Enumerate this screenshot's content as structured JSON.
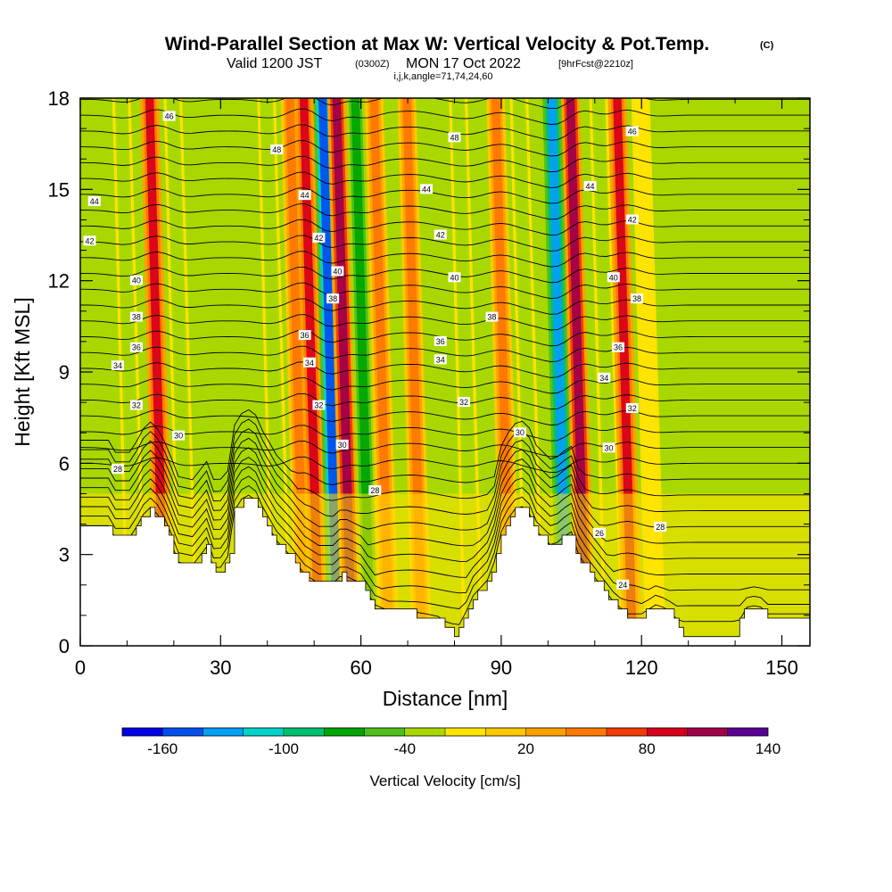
{
  "chart_data": {
    "type": "heatmap",
    "title": "Wind-Parallel Section at Max W: Vertical Velocity & Pot.Temp.",
    "title_mark": "(C)",
    "subtitle": {
      "valid_prefix": "Valid 1200 JST",
      "utc": "(0300Z)",
      "date": "MON 17 Oct 2022",
      "forecast": "[9hrFcst@2210z]"
    },
    "subtitle2": "i,j,k,angle=71,74,24,60",
    "xlabel": "Distance [nm]",
    "ylabel": "Height [Kft MSL]",
    "xlim": [
      0,
      156
    ],
    "ylim": [
      0,
      18
    ],
    "xticks": [
      0,
      30,
      60,
      90,
      120,
      150
    ],
    "yticks": [
      0,
      3,
      6,
      9,
      12,
      15,
      18
    ],
    "colorbar": {
      "label": "Vertical Velocity [cm/s]",
      "tick_labels": [
        -160,
        -100,
        -40,
        20,
        80,
        140
      ],
      "colors": [
        "#0000e6",
        "#0050f0",
        "#00a0f5",
        "#00d2c8",
        "#00c070",
        "#00a600",
        "#4ec01a",
        "#a8d800",
        "#ffe400",
        "#ffc800",
        "#ffa000",
        "#ff7800",
        "#f03c00",
        "#d8001a",
        "#a0004a",
        "#5a0096"
      ]
    },
    "velocity_bands_nm": [
      {
        "x": 12,
        "w": -40
      },
      {
        "x": 18,
        "w": 80
      },
      {
        "x": 23,
        "w": -40
      },
      {
        "x": 43,
        "w": -40
      },
      {
        "x": 48,
        "w": 40
      },
      {
        "x": 51,
        "w": 80
      },
      {
        "x": 55,
        "w": -160
      },
      {
        "x": 58,
        "w": 100
      },
      {
        "x": 62,
        "w": -80
      },
      {
        "x": 66,
        "w": 40
      },
      {
        "x": 73,
        "w": 40
      },
      {
        "x": 84,
        "w": -40
      },
      {
        "x": 92,
        "w": 40
      },
      {
        "x": 97,
        "w": -40
      },
      {
        "x": 104,
        "w": -130
      },
      {
        "x": 108,
        "w": 100
      },
      {
        "x": 114,
        "w": -40
      },
      {
        "x": 118,
        "w": 80
      },
      {
        "x": 123,
        "w": -20
      }
    ],
    "theta_contours_k": [
      24,
      26,
      28,
      30,
      32,
      34,
      36,
      38,
      40,
      42,
      44,
      46,
      48
    ],
    "terrain_nm_kft": [
      [
        0,
        3.9
      ],
      [
        6,
        3.9
      ],
      [
        7,
        3.5
      ],
      [
        11,
        3.5
      ],
      [
        13,
        4.2
      ],
      [
        15,
        4.5
      ],
      [
        17,
        4.2
      ],
      [
        19,
        3.5
      ],
      [
        21,
        2.7
      ],
      [
        24,
        2.6
      ],
      [
        27,
        3.2
      ],
      [
        29,
        2.3
      ],
      [
        32,
        3.0
      ],
      [
        33,
        4.4
      ],
      [
        35,
        4.9
      ],
      [
        37,
        4.9
      ],
      [
        39,
        4.2
      ],
      [
        42,
        3.4
      ],
      [
        45,
        2.9
      ],
      [
        48,
        2.3
      ],
      [
        51,
        2.0
      ],
      [
        54,
        2.0
      ],
      [
        56,
        2.3
      ],
      [
        60,
        2.0
      ],
      [
        63,
        1.3
      ],
      [
        66,
        1.1
      ],
      [
        70,
        1.1
      ],
      [
        74,
        1.0
      ],
      [
        77,
        0.9
      ],
      [
        79,
        0.6
      ],
      [
        80,
        0.35
      ],
      [
        82,
        0.9
      ],
      [
        84,
        1.6
      ],
      [
        87,
        2.1
      ],
      [
        89,
        2.9
      ],
      [
        90,
        3.7
      ],
      [
        92,
        4.3
      ],
      [
        94,
        4.6
      ],
      [
        96,
        4.3
      ],
      [
        97,
        3.8
      ],
      [
        99,
        3.5
      ],
      [
        101,
        3.2
      ],
      [
        103,
        3.5
      ],
      [
        105,
        3.7
      ],
      [
        106,
        3.1
      ],
      [
        108,
        2.6
      ],
      [
        111,
        2.0
      ],
      [
        114,
        1.4
      ],
      [
        117,
        1.0
      ],
      [
        120,
        1.0
      ],
      [
        123,
        1.3
      ],
      [
        125,
        1.2
      ],
      [
        127,
        1.0
      ],
      [
        129,
        0.3
      ],
      [
        132,
        0.3
      ],
      [
        135,
        0.3
      ],
      [
        140,
        0.4
      ],
      [
        142,
        1.2
      ],
      [
        145,
        1.3
      ],
      [
        147,
        1.0
      ],
      [
        150,
        1.0
      ],
      [
        153,
        1.0
      ],
      [
        156,
        1.0
      ]
    ],
    "contour_labels": [
      {
        "x": 19,
        "y": 17.4,
        "t": "46"
      },
      {
        "x": 42,
        "y": 16.3,
        "t": "48"
      },
      {
        "x": 80,
        "y": 16.7,
        "t": "48"
      },
      {
        "x": 118,
        "y": 16.9,
        "t": "46"
      },
      {
        "x": 3,
        "y": 14.6,
        "t": "44"
      },
      {
        "x": 48,
        "y": 14.8,
        "t": "44"
      },
      {
        "x": 74,
        "y": 15.0,
        "t": "44"
      },
      {
        "x": 109,
        "y": 15.1,
        "t": "44"
      },
      {
        "x": 2,
        "y": 13.3,
        "t": "42"
      },
      {
        "x": 51,
        "y": 13.4,
        "t": "42"
      },
      {
        "x": 77,
        "y": 13.5,
        "t": "42"
      },
      {
        "x": 118,
        "y": 14.0,
        "t": "42"
      },
      {
        "x": 12,
        "y": 12.0,
        "t": "40"
      },
      {
        "x": 55,
        "y": 12.3,
        "t": "40"
      },
      {
        "x": 80,
        "y": 12.1,
        "t": "40"
      },
      {
        "x": 114,
        "y": 12.1,
        "t": "40"
      },
      {
        "x": 12,
        "y": 10.8,
        "t": "38"
      },
      {
        "x": 54,
        "y": 11.4,
        "t": "38"
      },
      {
        "x": 88,
        "y": 10.8,
        "t": "38"
      },
      {
        "x": 119,
        "y": 11.4,
        "t": "38"
      },
      {
        "x": 12,
        "y": 9.8,
        "t": "36"
      },
      {
        "x": 48,
        "y": 10.2,
        "t": "36"
      },
      {
        "x": 77,
        "y": 10.0,
        "t": "36"
      },
      {
        "x": 115,
        "y": 9.8,
        "t": "36"
      },
      {
        "x": 8,
        "y": 9.2,
        "t": "34"
      },
      {
        "x": 49,
        "y": 9.3,
        "t": "34"
      },
      {
        "x": 77,
        "y": 9.4,
        "t": "34"
      },
      {
        "x": 112,
        "y": 8.8,
        "t": "34"
      },
      {
        "x": 12,
        "y": 7.9,
        "t": "32"
      },
      {
        "x": 51,
        "y": 7.9,
        "t": "32"
      },
      {
        "x": 82,
        "y": 8.0,
        "t": "32"
      },
      {
        "x": 118,
        "y": 7.8,
        "t": "32"
      },
      {
        "x": 21,
        "y": 6.9,
        "t": "30"
      },
      {
        "x": 56,
        "y": 6.6,
        "t": "30"
      },
      {
        "x": 94,
        "y": 7.0,
        "t": "30"
      },
      {
        "x": 113,
        "y": 6.5,
        "t": "30"
      },
      {
        "x": 8,
        "y": 5.8,
        "t": "28"
      },
      {
        "x": 63,
        "y": 5.1,
        "t": "28"
      },
      {
        "x": 111,
        "y": 3.7,
        "t": "26"
      },
      {
        "x": 124,
        "y": 3.9,
        "t": "28"
      },
      {
        "x": 116,
        "y": 2.0,
        "t": "24"
      }
    ],
    "grid": false,
    "legend": "bottom"
  }
}
